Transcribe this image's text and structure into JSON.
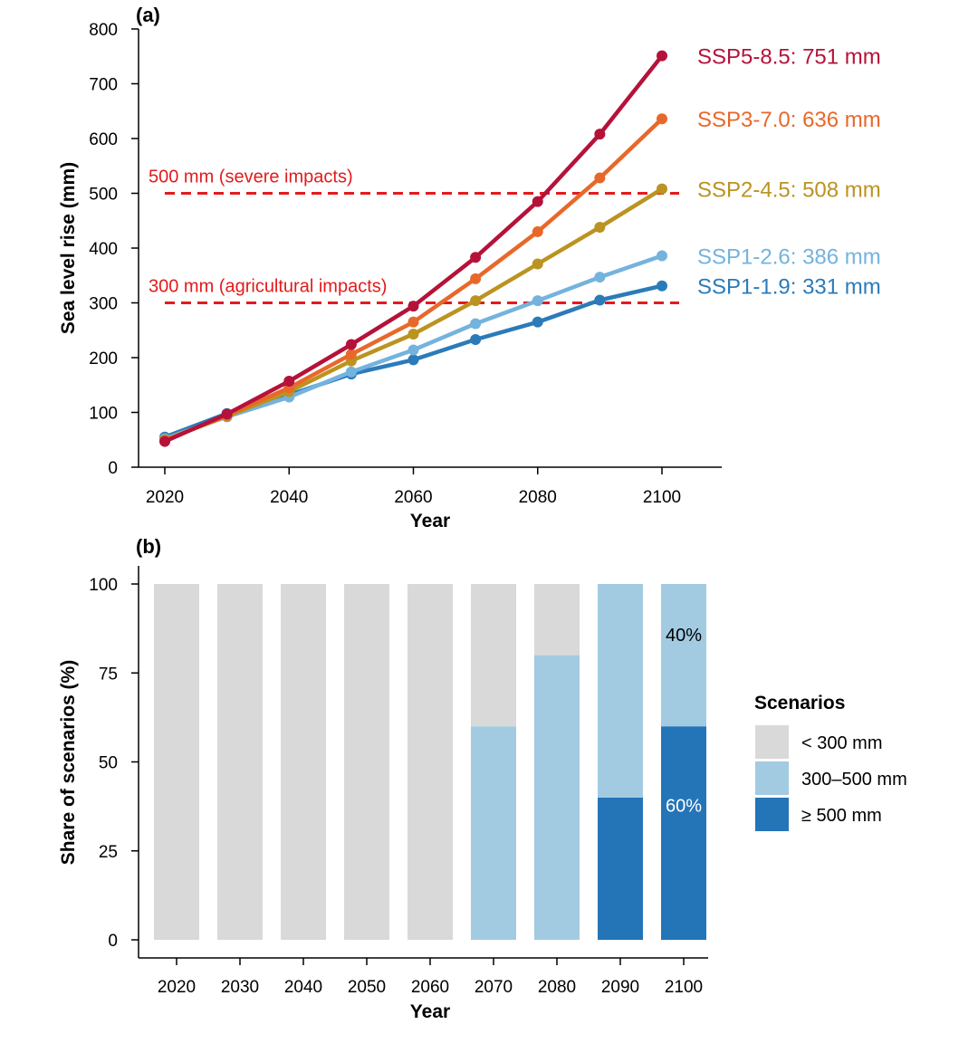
{
  "chart_data": [
    {
      "type": "line",
      "panel_label": "(a)",
      "xlabel": "Year",
      "ylabel": "Sea level rise (mm)",
      "xlim": [
        2015,
        2110
      ],
      "ylim": [
        0,
        800
      ],
      "x_ticks": [
        2020,
        2040,
        2060,
        2080,
        2100
      ],
      "y_ticks": [
        0,
        100,
        200,
        300,
        400,
        500,
        600,
        700,
        800
      ],
      "x": [
        2020,
        2030,
        2040,
        2050,
        2060,
        2070,
        2080,
        2090,
        2100
      ],
      "series": [
        {
          "name": "SSP1-1.9",
          "label": "SSP1-1.9: 331 mm",
          "color": "#2b7bb9",
          "values": [
            55,
            98,
            132,
            170,
            196,
            233,
            265,
            305,
            331
          ]
        },
        {
          "name": "SSP1-2.6",
          "label": "SSP1-2.6: 386 mm",
          "color": "#74b3dd",
          "values": [
            52,
            92,
            128,
            174,
            214,
            262,
            304,
            347,
            386
          ]
        },
        {
          "name": "SSP2-4.5",
          "label": "SSP2-4.5: 508 mm",
          "color": "#bb9320",
          "values": [
            50,
            93,
            138,
            194,
            243,
            304,
            371,
            438,
            508
          ]
        },
        {
          "name": "SSP3-7.0",
          "label": "SSP3-7.0: 636 mm",
          "color": "#e8682a",
          "values": [
            49,
            95,
            145,
            206,
            265,
            344,
            430,
            528,
            636
          ]
        },
        {
          "name": "SSP5-8.5",
          "label": "SSP5-8.5: 751 mm",
          "color": "#b5123a",
          "values": [
            47,
            97,
            157,
            224,
            294,
            383,
            485,
            608,
            751
          ]
        }
      ],
      "thresholds": [
        {
          "value": 500,
          "label": "500 mm (severe impacts)",
          "color": "#e31a1c"
        },
        {
          "value": 300,
          "label": "300 mm (agricultural impacts)",
          "color": "#e31a1c"
        }
      ]
    },
    {
      "type": "bar",
      "stacked": true,
      "panel_label": "(b)",
      "xlabel": "Year",
      "ylabel": "Share of scenarios (%)",
      "ylim": [
        0,
        100
      ],
      "y_ticks": [
        0,
        25,
        50,
        75,
        100
      ],
      "categories": [
        "2020",
        "2030",
        "2040",
        "2050",
        "2060",
        "2070",
        "2080",
        "2090",
        "2100"
      ],
      "series": [
        {
          "name": "≥ 500 mm",
          "color": "#2474b8",
          "values": [
            0,
            0,
            0,
            0,
            0,
            0,
            0,
            40,
            60
          ]
        },
        {
          "name": "300–500 mm",
          "color": "#a2cbe2",
          "values": [
            0,
            0,
            0,
            0,
            0,
            60,
            80,
            60,
            40
          ]
        },
        {
          "name": "< 300 mm",
          "color": "#d9d9d9",
          "values": [
            100,
            100,
            100,
            100,
            100,
            40,
            20,
            0,
            0
          ]
        }
      ],
      "annotations": [
        {
          "category": "2100",
          "series": "300–500 mm",
          "text": "40%",
          "color": "#000000"
        },
        {
          "category": "2100",
          "series": "≥ 500 mm",
          "text": "60%",
          "color": "#ffffff"
        }
      ],
      "legend": {
        "title": "Scenarios",
        "position": "right",
        "items": [
          {
            "label": "< 300 mm",
            "color": "#d9d9d9"
          },
          {
            "label": "300–500 mm",
            "color": "#a2cbe2"
          },
          {
            "label": "≥ 500 mm",
            "color": "#2474b8"
          }
        ]
      }
    }
  ]
}
